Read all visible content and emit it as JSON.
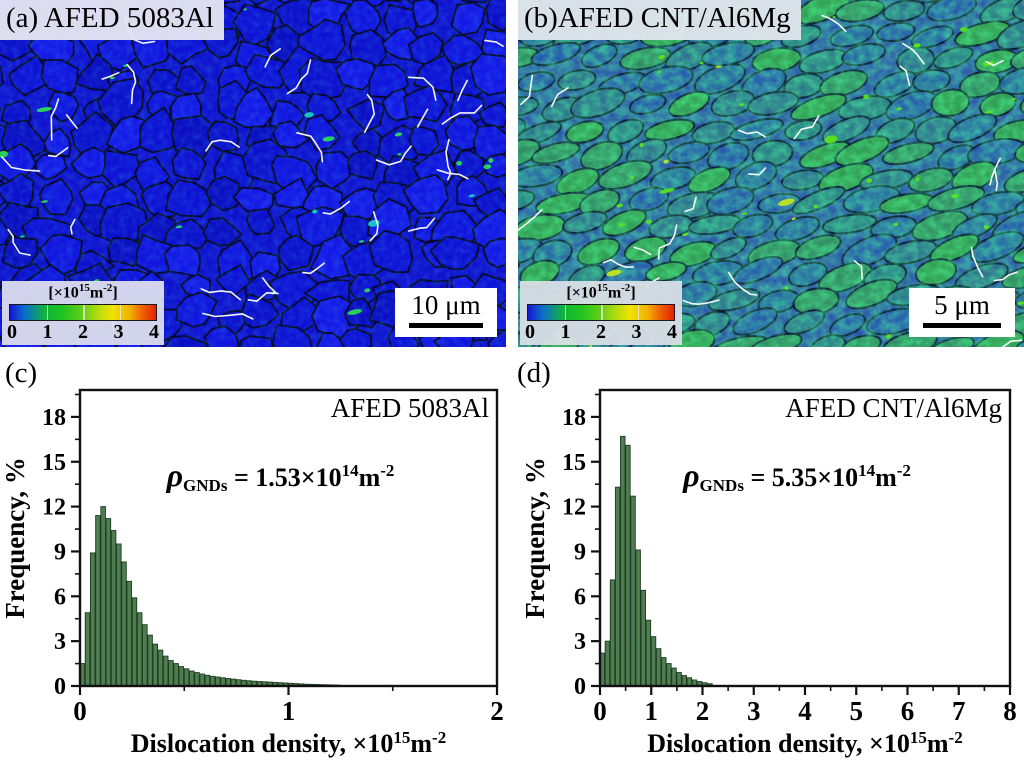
{
  "panels": {
    "a": {
      "label": "(a) AFED 5083Al",
      "scalebar_label": "10 μm",
      "colorbar": {
        "prefix": "[×10",
        "exponent": "15",
        "unit": "m",
        "unit_exponent": "-2",
        "suffix": "]",
        "ticks": [
          "0",
          "1",
          "2",
          "3",
          "4"
        ],
        "gradient": [
          {
            "c": "#1515d2",
            "p": 0
          },
          {
            "c": "#0b6ecb",
            "p": 10
          },
          {
            "c": "#11b33c",
            "p": 24
          },
          {
            "c": "#1fc41f",
            "p": 36
          },
          {
            "c": "#66cf17",
            "p": 50
          },
          {
            "c": "#b9dc0d",
            "p": 61
          },
          {
            "c": "#efe400",
            "p": 70
          },
          {
            "c": "#f2b100",
            "p": 82
          },
          {
            "c": "#ee5e00",
            "p": 91
          },
          {
            "c": "#e42200",
            "p": 100
          }
        ]
      },
      "colors": {
        "base": "#1013ce",
        "fills": [
          "#0d10cc",
          "#1115dd",
          "#0e12d4",
          "#1519e6",
          "#0b0ec2"
        ],
        "boundary": "#050822",
        "lagb": "#ffffff",
        "hotspot": "#2be052",
        "hotspot2": "#17d2c4"
      }
    },
    "b": {
      "label": "(b)AFED CNT/Al6Mg",
      "scalebar_label": "5 μm",
      "colorbar": {
        "prefix": "[×10",
        "exponent": "15",
        "unit": "m",
        "unit_exponent": "-2",
        "suffix": "]",
        "ticks": [
          "0",
          "1",
          "2",
          "3",
          "4"
        ],
        "gradient": [
          {
            "c": "#1515d2",
            "p": 0
          },
          {
            "c": "#0b6ecb",
            "p": 10
          },
          {
            "c": "#11b33c",
            "p": 24
          },
          {
            "c": "#1fc41f",
            "p": 36
          },
          {
            "c": "#66cf17",
            "p": 50
          },
          {
            "c": "#b9dc0d",
            "p": 61
          },
          {
            "c": "#efe400",
            "p": 70
          },
          {
            "c": "#f2b100",
            "p": 82
          },
          {
            "c": "#ee5e00",
            "p": 91
          },
          {
            "c": "#e42200",
            "p": 100
          }
        ]
      },
      "colors": {
        "base": "#2a52b0",
        "fills": [
          "#2352b2",
          "#2a6a92",
          "#2f8a62",
          "#2f9a50",
          "#28788a",
          "#2460a8"
        ],
        "boundary": "#061030",
        "lagb": "#ffffff",
        "hotspot": "#5ae61c",
        "hotspot2": "#c6e81c"
      }
    }
  },
  "chart_data": [
    {
      "type": "bar",
      "panel_label": "(c)",
      "title": "AFED 5083Al",
      "ylabel": "Frequency, %",
      "xlabel_parts": {
        "text": "Dislocation density, ×10",
        "exponent": "15",
        "unit": "m",
        "unit_exponent": "-2"
      },
      "annotation": {
        "symbol": "ρ",
        "symbol_sub": "GNDs",
        "equals_value": " = 1.53×10",
        "exponent": "14",
        "unit": "m",
        "unit_exponent": "-2"
      },
      "xlim": [
        0,
        2
      ],
      "ylim": [
        0,
        19.8
      ],
      "x_major_ticks": [
        0,
        1,
        2
      ],
      "x_minor_step": 0.5,
      "y_major_ticks": [
        0,
        3,
        6,
        9,
        12,
        15,
        18
      ],
      "y_minor_step": 1.5,
      "grid": false,
      "legend": null,
      "bin_start": 0,
      "bin_width": 0.025,
      "values": [
        1.5,
        4.9,
        8.9,
        11.4,
        12.0,
        11.2,
        10.4,
        9.5,
        8.3,
        7.0,
        5.9,
        4.9,
        4.1,
        3.4,
        2.8,
        2.4,
        2.0,
        1.7,
        1.5,
        1.3,
        1.15,
        1.0,
        0.9,
        0.8,
        0.72,
        0.65,
        0.6,
        0.55,
        0.5,
        0.46,
        0.42,
        0.38,
        0.35,
        0.32,
        0.3,
        0.28,
        0.26,
        0.24,
        0.22,
        0.2,
        0.18,
        0.16,
        0.14,
        0.12,
        0.11,
        0.1,
        0.09,
        0.08,
        0.07,
        0.06
      ],
      "bar_fill": "#4e7d50",
      "bar_edge": "#1e3a22"
    },
    {
      "type": "bar",
      "panel_label": "(d)",
      "title": "AFED CNT/Al6Mg",
      "ylabel": "Frequency, %",
      "xlabel_parts": {
        "text": "Dislocation density, ×10",
        "exponent": "15",
        "unit": "m",
        "unit_exponent": "-2"
      },
      "annotation": {
        "symbol": "ρ",
        "symbol_sub": "GNDs",
        "equals_value": " = 5.35×10",
        "exponent": "14",
        "unit": "m",
        "unit_exponent": "-2"
      },
      "xlim": [
        0,
        8
      ],
      "ylim": [
        0,
        19.8
      ],
      "x_major_ticks": [
        0,
        1,
        2,
        3,
        4,
        5,
        6,
        7,
        8
      ],
      "x_minor_step": 0.5,
      "y_major_ticks": [
        0,
        3,
        6,
        9,
        12,
        15,
        18
      ],
      "y_minor_step": 1.5,
      "grid": false,
      "legend": null,
      "bin_start": 0,
      "bin_width": 0.1,
      "values": [
        2.2,
        3.0,
        7.1,
        13.3,
        16.7,
        16.1,
        12.7,
        9.1,
        6.4,
        4.4,
        3.3,
        2.5,
        1.9,
        1.5,
        1.2,
        0.9,
        0.7,
        0.55,
        0.4,
        0.3,
        0.22,
        0.15
      ],
      "bar_fill": "#4e7d50",
      "bar_edge": "#1e3a22"
    }
  ]
}
